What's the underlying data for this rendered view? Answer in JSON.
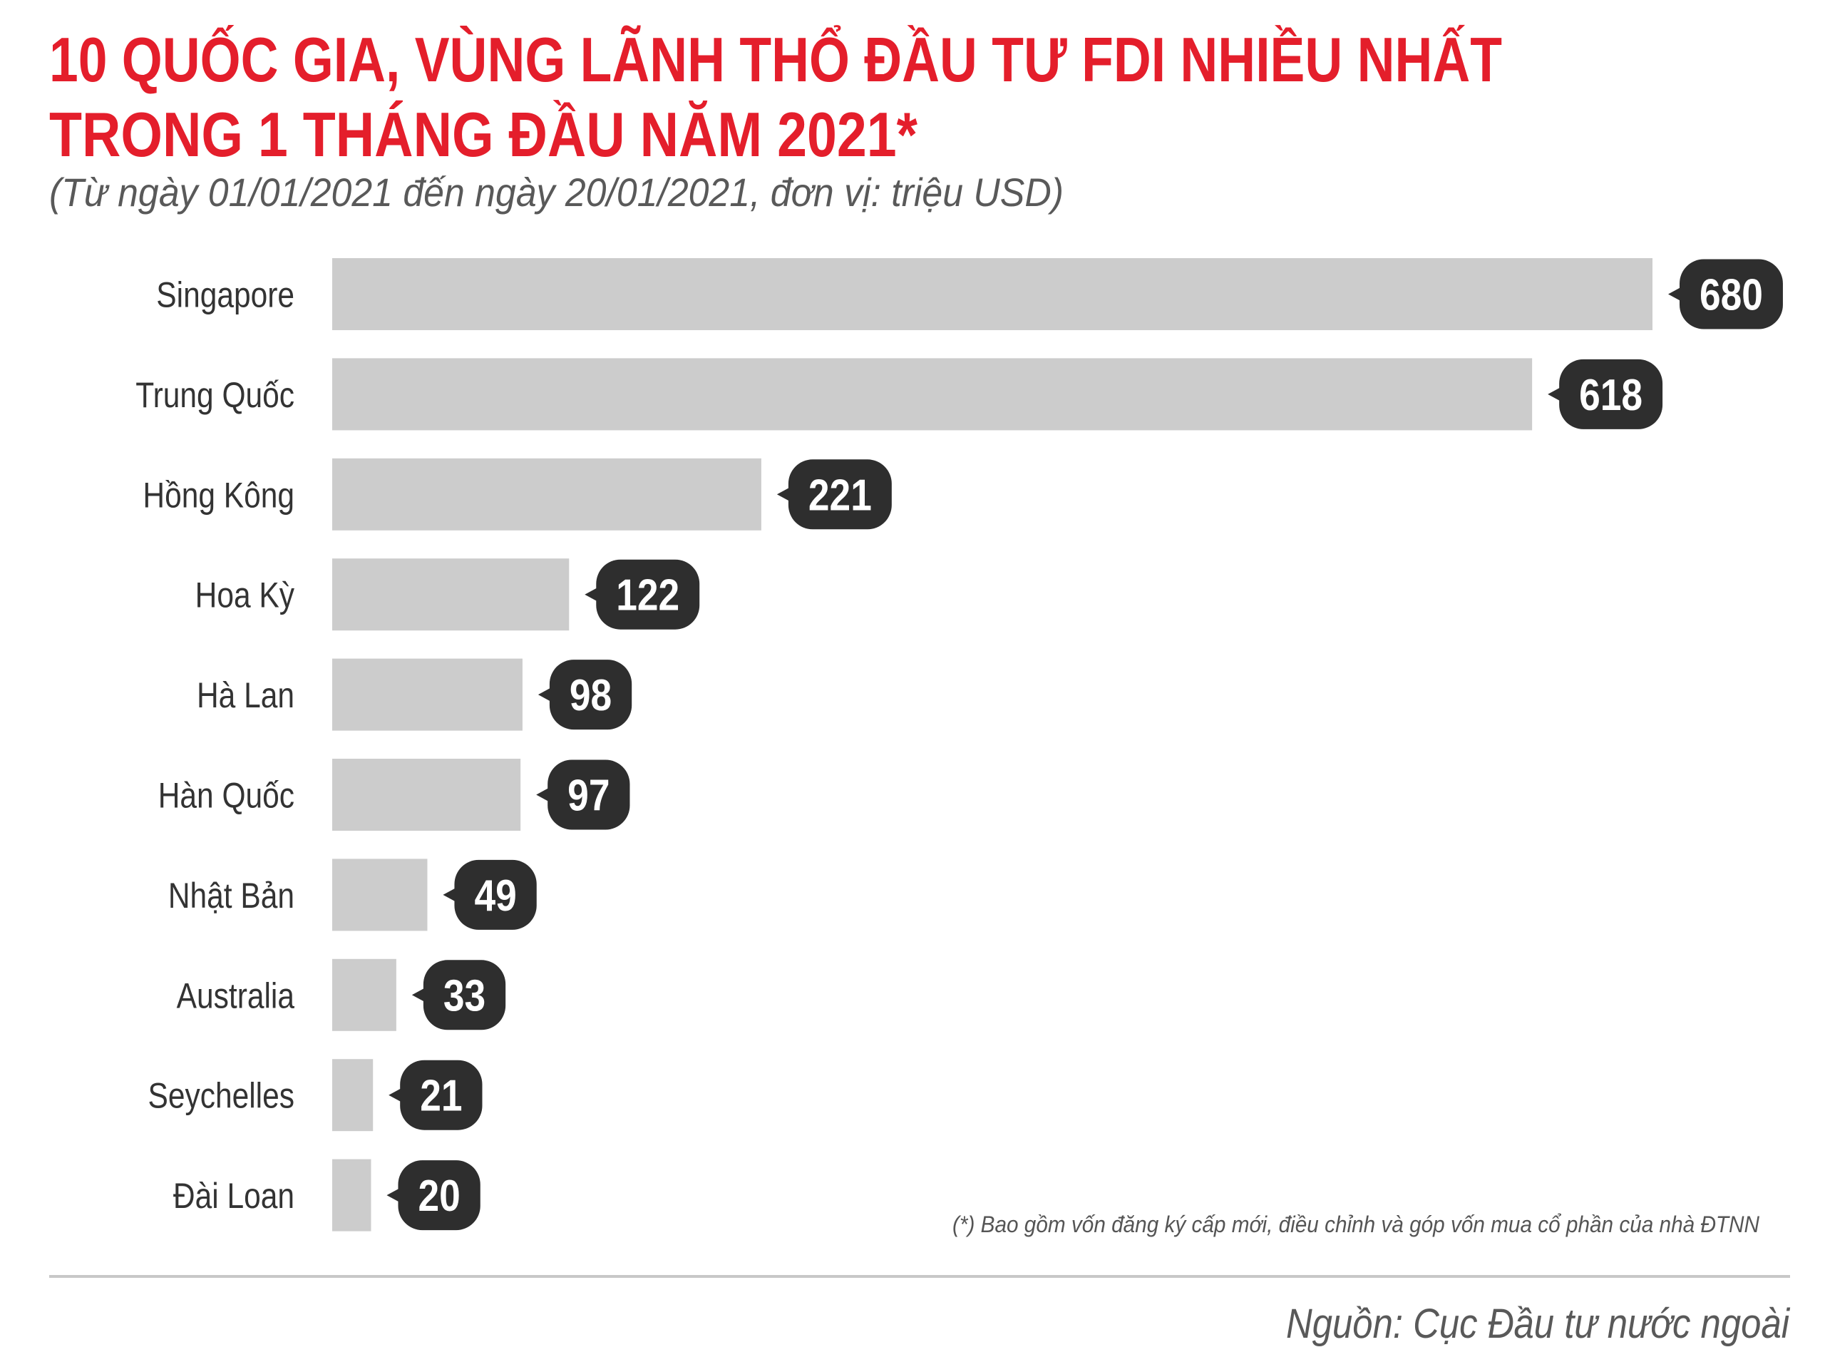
{
  "colors": {
    "title": "#e41e2b",
    "subtitle": "#595959",
    "category_label": "#333333",
    "bar": "#cccccc",
    "value_bubble": "#2e2e2e",
    "value_text": "#ffffff",
    "footnote": "#555555",
    "divider": "#c8c8c8",
    "source": "#595959",
    "background": "#ffffff"
  },
  "chart_data": {
    "type": "bar",
    "orientation": "horizontal",
    "title": [
      "10 QUỐC GIA, VÙNG LÃNH THỔ ĐẦU TƯ FDI NHIỀU NHẤT",
      "TRONG 1 THÁNG ĐẦU NĂM 2021*"
    ],
    "subtitle": "(Từ ngày 01/01/2021 đến ngày 20/01/2021, đơn vị: triệu USD)",
    "categories": [
      "Singapore",
      "Trung Quốc",
      "Hồng Kông",
      "Hoa Kỳ",
      "Hà Lan",
      "Hàn Quốc",
      "Nhật Bản",
      "Australia",
      "Seychelles",
      "Đài Loan"
    ],
    "values": [
      680,
      618,
      221,
      122,
      98,
      97,
      49,
      33,
      21,
      20
    ],
    "xlabel": "",
    "ylabel": "",
    "xlim": [
      0,
      680
    ],
    "axis_visible": false,
    "grid": false,
    "data_labels": true,
    "annotations": [
      "(*) Bao gồm vốn đăng ký cấp mới, điều chỉnh và góp vốn mua cổ phần của nhà ĐTNN"
    ]
  },
  "source": "Nguồn: Cục Đầu tư nước ngoài"
}
